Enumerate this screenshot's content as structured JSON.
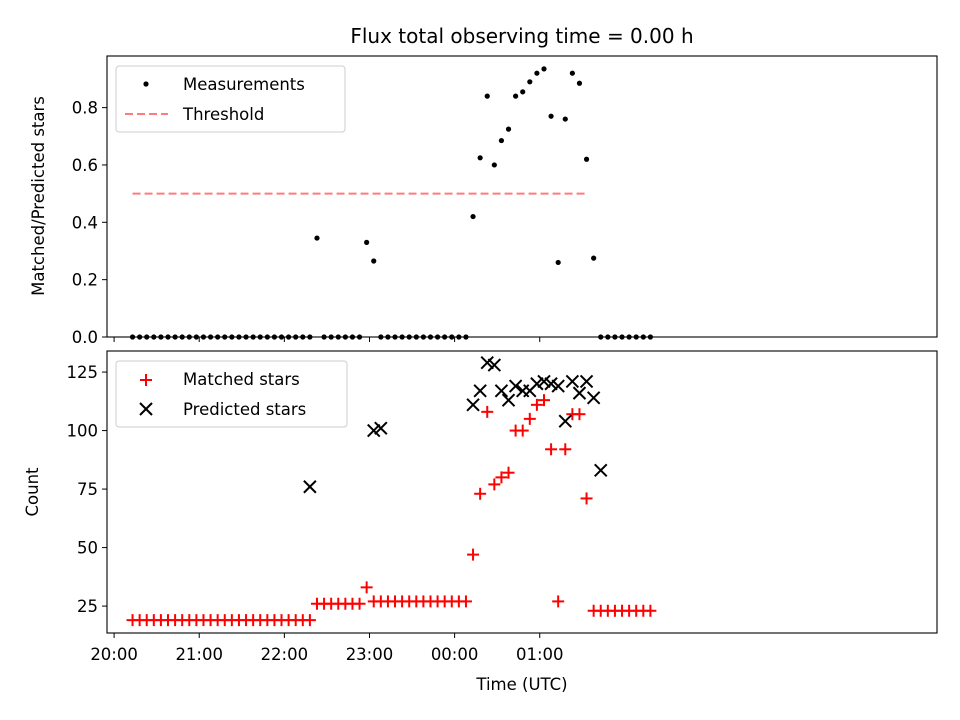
{
  "chart_data": [
    {
      "type": "scatter",
      "title": "Flux total observing time = 0.00 h",
      "xlabel": "",
      "ylabel": "Matched/Predicted stars",
      "ylim": [
        0,
        0.98
      ],
      "yticks": [
        0.0,
        0.2,
        0.4,
        0.6,
        0.8
      ],
      "ytick_labels": [
        "0.0",
        "0.2",
        "0.4",
        "0.6",
        "0.8"
      ],
      "xlim_minutes": [
        1195,
        1780
      ],
      "xticks_minutes": [
        1200,
        1260,
        1320,
        1380,
        1440,
        1500
      ],
      "legend_placement": "top-left",
      "series": [
        {
          "name": "Measurements",
          "marker": "dot",
          "color": "#000000",
          "x_minutes": [
            1213,
            1218,
            1223,
            1228,
            1233,
            1238,
            1243,
            1248,
            1253,
            1258,
            1263,
            1268,
            1273,
            1278,
            1283,
            1288,
            1293,
            1298,
            1303,
            1308,
            1313,
            1318,
            1323,
            1328,
            1333,
            1338,
            1343,
            1348,
            1353,
            1358,
            1363,
            1368,
            1373,
            1378,
            1383,
            1388,
            1393,
            1398,
            1403,
            1408,
            1413,
            1418,
            1423,
            1428,
            1433,
            1438,
            1443,
            1448,
            1453,
            1458,
            1463,
            1468,
            1473,
            1478,
            1483,
            1488,
            1493,
            1498,
            1503,
            1508,
            1513,
            1518,
            1523,
            1528,
            1533,
            1538,
            1543,
            1548,
            1553,
            1558,
            1563,
            1568,
            1573,
            1578
          ],
          "y": [
            0,
            0,
            0,
            0,
            0,
            0,
            0,
            0,
            0,
            0,
            0,
            0,
            0,
            0,
            0,
            0,
            0,
            0,
            0,
            0,
            0,
            0,
            0,
            0,
            0,
            0,
            0.345,
            0,
            0,
            0,
            0,
            0,
            0,
            0.33,
            0.265,
            0,
            0,
            0,
            0,
            0,
            0,
            0,
            0,
            0,
            0,
            0,
            0,
            0,
            0.42,
            0.625,
            0.84,
            0.6,
            0.685,
            0.725,
            0.84,
            0.855,
            0.89,
            0.92,
            0.935,
            0.77,
            0.26,
            0.76,
            0.92,
            0.885,
            0.62,
            0.275,
            0,
            0,
            0,
            0,
            0,
            0,
            0,
            0
          ]
        },
        {
          "name": "Threshold",
          "line": "dashed",
          "color": "#ff7b7b",
          "x_minutes": [
            1213,
            1533
          ],
          "y": [
            0.5,
            0.5
          ]
        }
      ]
    },
    {
      "type": "scatter",
      "title": "",
      "xlabel": "Time (UTC)",
      "ylabel": "Count",
      "ylim": [
        13.5,
        134
      ],
      "yticks": [
        25,
        50,
        75,
        100,
        125
      ],
      "ytick_labels": [
        "25",
        "50",
        "75",
        "100",
        "125"
      ],
      "xlim_minutes": [
        1195,
        1780
      ],
      "xticks_minutes": [
        1200,
        1260,
        1320,
        1380,
        1440,
        1500
      ],
      "xtick_labels": [
        "20:00",
        "21:00",
        "22:00",
        "23:00",
        "00:00",
        "01:00"
      ],
      "legend_placement": "top-left",
      "series": [
        {
          "name": "Matched stars",
          "marker": "plus",
          "color": "#ff0000",
          "x_minutes": [
            1213,
            1218,
            1223,
            1228,
            1233,
            1238,
            1243,
            1248,
            1253,
            1258,
            1263,
            1268,
            1273,
            1278,
            1283,
            1288,
            1293,
            1298,
            1303,
            1308,
            1313,
            1318,
            1323,
            1328,
            1333,
            1338,
            1343,
            1348,
            1353,
            1358,
            1363,
            1368,
            1373,
            1378,
            1383,
            1388,
            1393,
            1398,
            1403,
            1408,
            1413,
            1418,
            1423,
            1428,
            1433,
            1438,
            1443,
            1448,
            1453,
            1458,
            1463,
            1468,
            1473,
            1478,
            1483,
            1488,
            1493,
            1498,
            1503,
            1508,
            1513,
            1518,
            1523,
            1528,
            1533,
            1538,
            1543,
            1548,
            1553,
            1558,
            1563,
            1568,
            1573,
            1578
          ],
          "y": [
            19,
            19,
            19,
            19,
            19,
            19,
            19,
            19,
            19,
            19,
            19,
            19,
            19,
            19,
            19,
            19,
            19,
            19,
            19,
            19,
            19,
            19,
            19,
            19,
            19,
            19,
            26,
            26,
            26,
            26,
            26,
            26,
            26,
            33,
            27,
            27,
            27,
            27,
            27,
            27,
            27,
            27,
            27,
            27,
            27,
            27,
            27,
            27,
            47,
            73,
            108,
            77,
            80,
            82,
            100,
            100,
            105,
            111,
            113,
            92,
            27,
            92,
            107,
            107,
            71,
            23,
            23,
            23,
            23,
            23,
            23,
            23,
            23,
            23
          ]
        },
        {
          "name": "Predicted stars",
          "marker": "x",
          "color": "#000000",
          "x_minutes": [
            1338,
            1383,
            1388,
            1453,
            1458,
            1463,
            1468,
            1473,
            1478,
            1483,
            1488,
            1493,
            1498,
            1503,
            1508,
            1513,
            1518,
            1523,
            1528,
            1533,
            1538,
            1543
          ],
          "y": [
            76,
            100,
            101,
            111,
            117,
            129,
            128,
            117,
            113,
            119,
            117,
            117,
            120,
            121,
            120,
            119,
            104,
            121,
            116,
            121,
            114,
            83
          ]
        }
      ]
    }
  ]
}
